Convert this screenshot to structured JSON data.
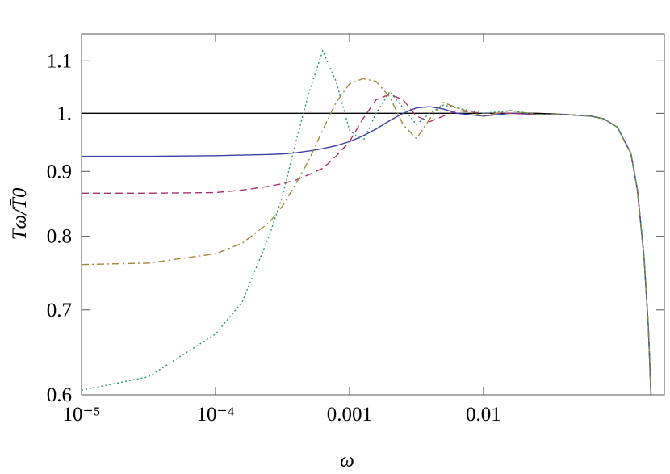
{
  "chart_data": {
    "type": "line",
    "xlabel": "ω",
    "ylabel": "Tω/T̄0",
    "xlog": true,
    "ylog": true,
    "xlim": [
      1e-05,
      0.224
    ],
    "ylim": [
      0.6,
      1.155
    ],
    "xticks": [
      {
        "value": 1e-05,
        "label": "10⁻⁵"
      },
      {
        "value": 0.0001,
        "label": "10⁻⁴"
      },
      {
        "value": 0.001,
        "label": "0.001"
      },
      {
        "value": 0.01,
        "label": "0.01"
      }
    ],
    "yticks": [
      0.6,
      0.7,
      0.8,
      0.9,
      {
        "value": 1,
        "label": "1."
      },
      1.1
    ],
    "x": [
      1e-05,
      3.16e-05,
      0.0001,
      0.000158,
      0.000251,
      0.000316,
      0.000398,
      0.000501,
      0.000631,
      0.000794,
      0.001,
      0.00126,
      0.00158,
      0.002,
      0.00251,
      0.00316,
      0.00398,
      0.00501,
      0.00631,
      0.01,
      0.0158,
      0.0251,
      0.0398,
      0.0631,
      0.0794,
      0.1,
      0.126,
      0.141,
      0.158,
      0.17,
      0.178
    ],
    "series": [
      {
        "color": "#000000",
        "dash": "solid",
        "values": [
          1,
          1,
          1,
          1,
          1,
          1,
          1,
          1,
          1,
          1,
          1,
          1,
          1,
          1,
          1,
          1,
          1,
          1,
          1,
          1,
          1,
          1,
          0.998,
          0.995,
          0.99,
          0.975,
          0.93,
          0.87,
          0.77,
          0.68,
          0.6
        ]
      },
      {
        "color": "#3f3fa8",
        "dash": "solid",
        "values": [
          0.925,
          0.925,
          0.926,
          0.927,
          0.928,
          0.929,
          0.931,
          0.934,
          0.938,
          0.943,
          0.95,
          0.96,
          0.972,
          0.987,
          1.0,
          1.01,
          1.012,
          1.008,
          1.0,
          0.995,
          1.0,
          0.998,
          0.998,
          0.995,
          0.99,
          0.975,
          0.93,
          0.87,
          0.77,
          0.68,
          0.6
        ]
      },
      {
        "color": "#a3356f",
        "dash": "dashed",
        "values": [
          0.865,
          0.865,
          0.866,
          0.87,
          0.876,
          0.88,
          0.886,
          0.895,
          0.905,
          0.925,
          0.95,
          0.99,
          1.025,
          1.035,
          1.025,
          0.995,
          0.985,
          0.995,
          1.005,
          1.0,
          1.0,
          0.998,
          0.998,
          0.995,
          0.99,
          0.975,
          0.93,
          0.87,
          0.77,
          0.68,
          0.6
        ]
      },
      {
        "color": "#9c8a3c",
        "dash": "dashdot",
        "values": [
          0.76,
          0.762,
          0.775,
          0.79,
          0.82,
          0.845,
          0.88,
          0.92,
          0.97,
          1.02,
          1.055,
          1.065,
          1.06,
          1.03,
          0.98,
          0.955,
          0.99,
          1.02,
          1.01,
          0.995,
          1.005,
          0.998,
          0.998,
          0.995,
          0.99,
          0.975,
          0.93,
          0.87,
          0.77,
          0.68,
          0.6
        ]
      },
      {
        "color": "#2f9470",
        "dash": "dotted",
        "values": [
          0.605,
          0.62,
          0.67,
          0.71,
          0.8,
          0.86,
          0.95,
          1.04,
          1.12,
          1.06,
          0.97,
          0.95,
          1.0,
          1.04,
          1.01,
          0.98,
          1.0,
          1.015,
          1.01,
          1.0,
          1.005,
          0.998,
          0.998,
          0.995,
          0.99,
          0.975,
          0.93,
          0.87,
          0.77,
          0.68,
          0.6
        ]
      }
    ]
  }
}
